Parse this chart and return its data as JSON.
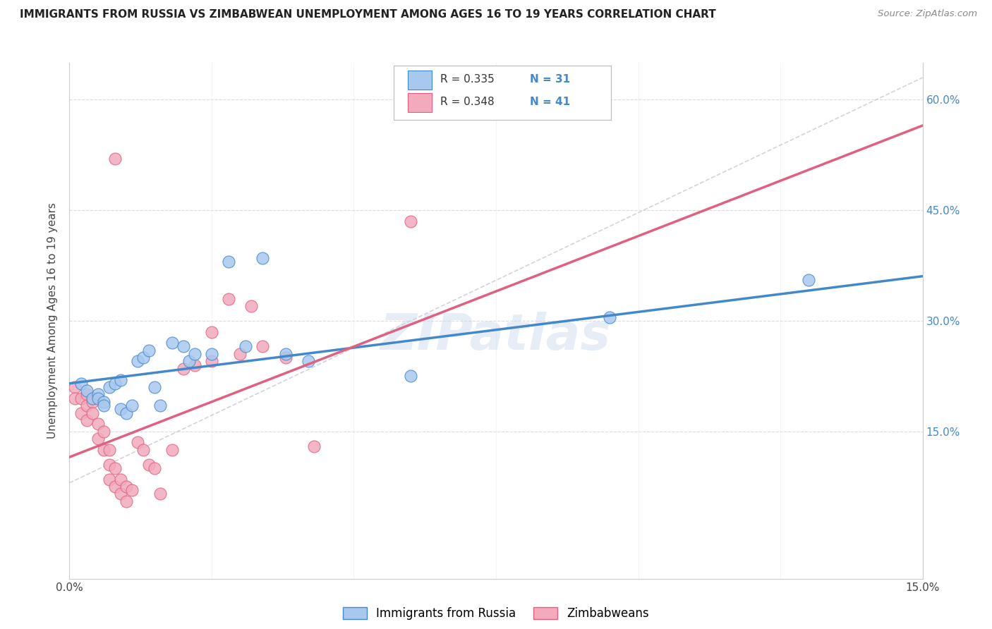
{
  "title": "IMMIGRANTS FROM RUSSIA VS ZIMBABWEAN UNEMPLOYMENT AMONG AGES 16 TO 19 YEARS CORRELATION CHART",
  "source": "Source: ZipAtlas.com",
  "ylabel": "Unemployment Among Ages 16 to 19 years",
  "xlim": [
    0.0,
    0.15
  ],
  "ylim": [
    -0.05,
    0.65
  ],
  "xticks": [
    0.0,
    0.025,
    0.05,
    0.075,
    0.1,
    0.125,
    0.15
  ],
  "xtick_labels": [
    "0.0%",
    "",
    "",
    "",
    "",
    "",
    "15.0%"
  ],
  "yticks_right": [
    0.15,
    0.3,
    0.45,
    0.6
  ],
  "ytick_labels_right": [
    "15.0%",
    "30.0%",
    "45.0%",
    "60.0%"
  ],
  "legend_r1": "0.335",
  "legend_n1": "31",
  "legend_r2": "0.348",
  "legend_n2": "41",
  "legend_label1": "Immigrants from Russia",
  "legend_label2": "Zimbabweans",
  "blue_color": "#A8C8EE",
  "pink_color": "#F2AABC",
  "blue_line_color": "#4488CC",
  "pink_line_color": "#E06080",
  "dashed_line_color": "#C8C8D4",
  "watermark": "ZIPatlas",
  "blue_x": [
    0.002,
    0.003,
    0.004,
    0.005,
    0.005,
    0.006,
    0.006,
    0.007,
    0.008,
    0.009,
    0.009,
    0.01,
    0.011,
    0.012,
    0.013,
    0.014,
    0.015,
    0.016,
    0.018,
    0.02,
    0.021,
    0.022,
    0.025,
    0.028,
    0.031,
    0.034,
    0.038,
    0.042,
    0.06,
    0.095,
    0.13
  ],
  "blue_y": [
    0.215,
    0.205,
    0.195,
    0.2,
    0.195,
    0.19,
    0.185,
    0.21,
    0.215,
    0.22,
    0.18,
    0.175,
    0.185,
    0.245,
    0.25,
    0.26,
    0.21,
    0.185,
    0.27,
    0.265,
    0.245,
    0.255,
    0.255,
    0.38,
    0.265,
    0.385,
    0.255,
    0.245,
    0.225,
    0.305,
    0.355
  ],
  "pink_x": [
    0.001,
    0.001,
    0.002,
    0.002,
    0.003,
    0.003,
    0.003,
    0.004,
    0.004,
    0.005,
    0.005,
    0.006,
    0.006,
    0.007,
    0.007,
    0.007,
    0.008,
    0.008,
    0.009,
    0.009,
    0.01,
    0.01,
    0.011,
    0.012,
    0.013,
    0.014,
    0.015,
    0.016,
    0.018,
    0.02,
    0.022,
    0.025,
    0.025,
    0.028,
    0.03,
    0.032,
    0.034,
    0.038,
    0.043,
    0.06,
    0.008
  ],
  "pink_y": [
    0.21,
    0.195,
    0.195,
    0.175,
    0.2,
    0.185,
    0.165,
    0.19,
    0.175,
    0.16,
    0.14,
    0.15,
    0.125,
    0.125,
    0.105,
    0.085,
    0.1,
    0.075,
    0.085,
    0.065,
    0.075,
    0.055,
    0.07,
    0.135,
    0.125,
    0.105,
    0.1,
    0.065,
    0.125,
    0.235,
    0.24,
    0.245,
    0.285,
    0.33,
    0.255,
    0.32,
    0.265,
    0.25,
    0.13,
    0.435,
    0.52
  ]
}
